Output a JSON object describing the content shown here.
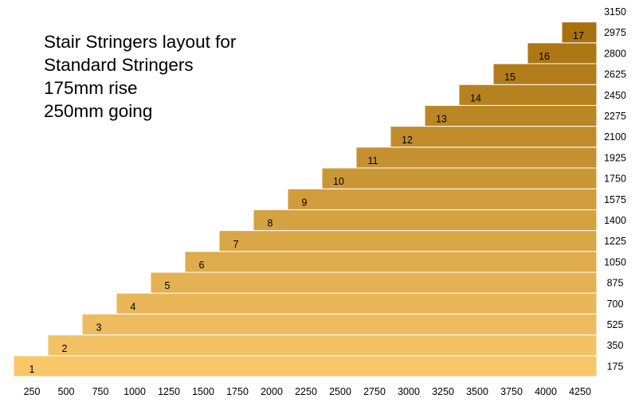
{
  "title_lines": [
    "Stair Stringers layout for",
    "Standard Stringers",
    "175mm rise",
    "250mm going"
  ],
  "chart_data": {
    "type": "bar",
    "title": "Stair Stringers layout for Standard Stringers 175mm rise 250mm going",
    "steps": [
      "1",
      "2",
      "3",
      "4",
      "5",
      "6",
      "7",
      "8",
      "9",
      "10",
      "11",
      "12",
      "13",
      "14",
      "15",
      "16",
      "17"
    ],
    "rise_values": [
      175,
      350,
      525,
      700,
      875,
      1050,
      1225,
      1400,
      1575,
      1750,
      1925,
      2100,
      2275,
      2450,
      2625,
      2800,
      2975,
      3150
    ],
    "going_ticks": [
      250,
      500,
      750,
      1000,
      1250,
      1500,
      1750,
      2000,
      2250,
      2500,
      2750,
      3000,
      3250,
      3500,
      3750,
      4000,
      4250
    ],
    "step_start_going": [
      250,
      500,
      750,
      1000,
      1250,
      1500,
      1750,
      2000,
      2250,
      2500,
      2750,
      3000,
      3250,
      3500,
      3750,
      4000,
      4250
    ],
    "colors": {
      "bottom": "#f8c76a",
      "top": "#a26c08",
      "bar_border": "#ffffff"
    }
  }
}
